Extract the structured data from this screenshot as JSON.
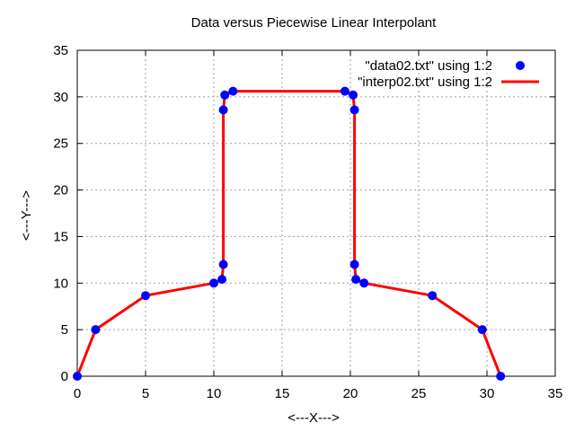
{
  "chart_data": {
    "type": "line",
    "title": "Data versus Piecewise Linear Interpolant",
    "xlabel": "<---X--->",
    "ylabel": "<---Y--->",
    "xlim": [
      0,
      35
    ],
    "ylim": [
      0,
      35
    ],
    "xticks": [
      "0",
      "5",
      "10",
      "15",
      "20",
      "25",
      "30",
      "35"
    ],
    "yticks": [
      "0",
      "5",
      "10",
      "15",
      "20",
      "25",
      "30",
      "35"
    ],
    "grid": true,
    "legend_position": "top-right",
    "series": [
      {
        "name": "\"data02.txt\" using 1:2",
        "kind": "points",
        "color": "#0000ff",
        "x": [
          0.0,
          1.34,
          5.0,
          10.0,
          10.6,
          10.7,
          10.7,
          10.8,
          11.4,
          19.6,
          20.2,
          20.3,
          20.3,
          20.4,
          21.0,
          26.0,
          29.66,
          31.0
        ],
        "y": [
          0.0,
          5.0,
          8.66,
          10.0,
          10.4,
          12.0,
          28.6,
          30.2,
          30.6,
          30.6,
          30.2,
          28.6,
          12.0,
          10.4,
          10.0,
          8.66,
          5.0,
          0.0
        ]
      },
      {
        "name": "\"interp02.txt\" using 1:2",
        "kind": "line",
        "color": "#ff0000",
        "x": [
          0.0,
          1.34,
          5.0,
          10.0,
          10.6,
          10.7,
          10.7,
          10.8,
          11.4,
          19.6,
          20.2,
          20.3,
          20.3,
          20.4,
          21.0,
          26.0,
          29.66,
          31.0
        ],
        "y": [
          0.0,
          5.0,
          8.66,
          10.0,
          10.4,
          12.0,
          28.6,
          30.2,
          30.6,
          30.6,
          30.2,
          28.6,
          12.0,
          10.4,
          10.0,
          8.66,
          5.0,
          0.0
        ]
      }
    ]
  }
}
